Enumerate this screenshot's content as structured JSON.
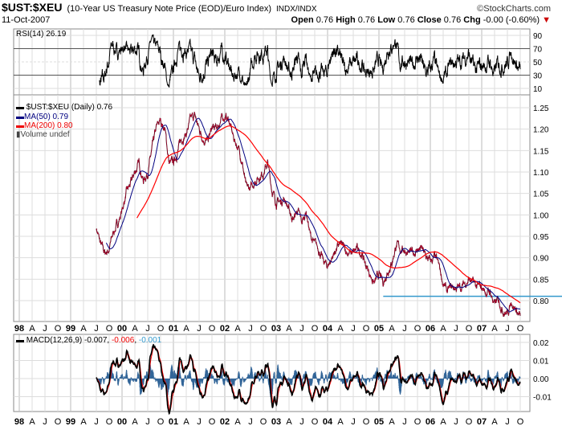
{
  "header": {
    "symbol": "$UST:$XEU",
    "description": "(10-Year US Treasury Note Price (EOD)/Euro Index)",
    "exchange": "INDX/INDX",
    "watermark": "©StockCharts.com",
    "date": "11-Oct-2007",
    "open_label": "Open",
    "open": "0.76",
    "high_label": "High",
    "high": "0.76",
    "low_label": "Low",
    "low": "0.76",
    "close_label": "Close",
    "close": "0.76",
    "chg_label": "Chg",
    "chg": "-0.00 (-0.60%)"
  },
  "colors": {
    "price": "#000000",
    "ma50": "#000080",
    "ma200": "#ff0000",
    "signal": "#ff0000",
    "histogram": "#336699",
    "support": "#3399cc"
  },
  "chart_data": [
    {
      "type": "line",
      "title": "RSI(14) 26.19",
      "legend": "RSI(14) 26.19",
      "yticks": [
        10,
        30,
        50,
        70,
        90
      ],
      "ylim": [
        0,
        100
      ],
      "reference_lines": [
        30,
        70
      ]
    },
    {
      "type": "line",
      "title": "$UST:$XEU (Daily) 0.76",
      "legend": [
        {
          "name": "$UST:$XEU (Daily) 0.76"
        },
        {
          "name": "MA(50) 0.79"
        },
        {
          "name": "MA(200) 0.80"
        },
        {
          "name": "Volume undef"
        }
      ],
      "ylim": [
        0.75,
        1.27
      ],
      "yticks": [
        "0.80",
        "0.85",
        "0.90",
        "0.95",
        "1.00",
        "1.05",
        "1.10",
        "1.15",
        "1.20",
        "1.25"
      ],
      "x_start": "1999-07",
      "x_step": "month",
      "monthly_close": [
        0.97,
        0.93,
        0.91,
        0.92,
        0.96,
        0.98,
        1.01,
        1.05,
        1.07,
        1.1,
        1.12,
        1.08,
        1.1,
        1.15,
        1.2,
        1.22,
        1.2,
        1.12,
        1.12,
        1.15,
        1.18,
        1.19,
        1.22,
        1.23,
        1.2,
        1.18,
        1.17,
        1.2,
        1.2,
        1.22,
        1.23,
        1.22,
        1.18,
        1.16,
        1.13,
        1.06,
        1.06,
        1.08,
        1.09,
        1.1,
        1.12,
        1.06,
        1.03,
        1.03,
        1.04,
        1.01,
        0.99,
        1.01,
        0.98,
        1.01,
        0.95,
        0.93,
        0.92,
        0.89,
        0.88,
        0.9,
        0.92,
        0.93,
        0.92,
        0.91,
        0.91,
        0.92,
        0.91,
        0.88,
        0.86,
        0.84,
        0.86,
        0.84,
        0.87,
        0.89,
        0.93,
        0.92,
        0.92,
        0.91,
        0.91,
        0.92,
        0.92,
        0.9,
        0.89,
        0.9,
        0.88,
        0.84,
        0.82,
        0.83,
        0.83,
        0.83,
        0.84,
        0.85,
        0.84,
        0.83,
        0.83,
        0.82,
        0.82,
        0.79,
        0.8,
        0.78,
        0.77,
        0.8,
        0.78,
        0.76
      ],
      "support_line": {
        "value": 0.81,
        "from": "2005-02"
      }
    },
    {
      "type": "line",
      "title": "MACD(12,26,9)",
      "legend": [
        {
          "name": "MACD(12,26,9)",
          "value": "-0.007"
        },
        {
          "name": "signal",
          "value": "-0.006"
        },
        {
          "name": "histogram",
          "value": "-0.001"
        }
      ],
      "yticks": [
        "0.02",
        "0.01",
        "0.00",
        "-0.01"
      ],
      "ylim": [
        -0.02,
        0.022
      ]
    }
  ],
  "xaxis_labels": [
    "98",
    "A",
    "J",
    "O",
    "99",
    "A",
    "J",
    "O",
    "00",
    "A",
    "J",
    "O",
    "01",
    "A",
    "J",
    "O",
    "02",
    "A",
    "J",
    "O",
    "03",
    "A",
    "J",
    "O",
    "04",
    "A",
    "J",
    "O",
    "05",
    "A",
    "J",
    "O",
    "06",
    "A",
    "J",
    "O",
    "07",
    "A",
    "J",
    "O"
  ]
}
